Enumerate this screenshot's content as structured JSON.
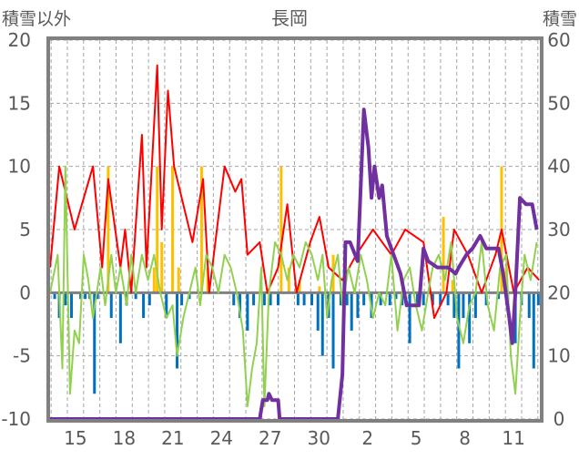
{
  "chart_data": {
    "type": "line",
    "title": "長岡",
    "ylabel_left": "積雪以外",
    "ylabel_right": "積雪",
    "ylim_left": [
      -10,
      20
    ],
    "ylim_right": [
      0,
      60
    ],
    "yticks_left": [
      "20",
      "15",
      "10",
      "5",
      "0",
      "-5",
      "-10"
    ],
    "yticks_left_values": [
      20,
      15,
      10,
      5,
      0,
      -5,
      -10
    ],
    "yticks_right": [
      "60",
      "50",
      "40",
      "30",
      "20",
      "10",
      "0"
    ],
    "yticks_right_values": [
      60,
      50,
      40,
      30,
      20,
      10,
      0
    ],
    "xlim": [
      0,
      32
    ],
    "xticks": [
      "15",
      "18",
      "21",
      "24",
      "27",
      "30",
      "2",
      "5",
      "8",
      "11"
    ],
    "xtick_values": [
      1.66,
      4.84,
      8.02,
      11.2,
      14.38,
      17.56,
      20.74,
      23.92,
      27.1,
      30.28
    ],
    "grid": true,
    "colors": {
      "red": "#ff0000",
      "green": "#92d050",
      "purple": "#7030a0",
      "blue": "#0070c0",
      "orange": "#ffc000",
      "frame": "#808080"
    },
    "series": [
      {
        "name": "red-line",
        "axis": "left",
        "color": "#ff0000",
        "points": [
          [
            0,
            2
          ],
          [
            0.6,
            10
          ],
          [
            1.6,
            5
          ],
          [
            2.8,
            10
          ],
          [
            3.4,
            2
          ],
          [
            3.8,
            9
          ],
          [
            4.6,
            2
          ],
          [
            4.9,
            5
          ],
          [
            5.3,
            0
          ],
          [
            6.0,
            12.5
          ],
          [
            6.3,
            2
          ],
          [
            7.0,
            18
          ],
          [
            7.3,
            5
          ],
          [
            7.7,
            16
          ],
          [
            8.1,
            10
          ],
          [
            8.7,
            7
          ],
          [
            9.3,
            4
          ],
          [
            10.0,
            9
          ],
          [
            10.4,
            0
          ],
          [
            11.4,
            10
          ],
          [
            12.1,
            8
          ],
          [
            12.5,
            9
          ],
          [
            12.9,
            3
          ],
          [
            13.7,
            4
          ],
          [
            14.2,
            0
          ],
          [
            14.9,
            2
          ],
          [
            15.5,
            7
          ],
          [
            16.1,
            0
          ],
          [
            17.0,
            4
          ],
          [
            17.6,
            6
          ],
          [
            18.2,
            2
          ],
          [
            19.1,
            1
          ],
          [
            20.0,
            3
          ],
          [
            21.1,
            5
          ],
          [
            22.3,
            3
          ],
          [
            23.2,
            5
          ],
          [
            24.4,
            4
          ],
          [
            25.1,
            -2
          ],
          [
            25.9,
            0
          ],
          [
            26.4,
            5
          ],
          [
            27.3,
            3
          ],
          [
            28.2,
            0
          ],
          [
            29.1,
            3
          ],
          [
            29.5,
            5
          ],
          [
            30.3,
            0
          ],
          [
            31.2,
            2
          ],
          [
            31.95,
            1
          ]
        ]
      },
      {
        "name": "green-line",
        "axis": "left",
        "color": "#92d050",
        "points": [
          [
            0,
            0
          ],
          [
            0.5,
            3
          ],
          [
            0.8,
            -6
          ],
          [
            1.0,
            10
          ],
          [
            1.3,
            -8
          ],
          [
            1.6,
            -3
          ],
          [
            1.9,
            -4
          ],
          [
            2.2,
            3
          ],
          [
            2.5,
            1
          ],
          [
            2.8,
            -2
          ],
          [
            3.3,
            2
          ],
          [
            3.6,
            -1
          ],
          [
            4.0,
            3
          ],
          [
            4.3,
            0
          ],
          [
            4.6,
            2
          ],
          [
            5.0,
            -1
          ],
          [
            5.3,
            3
          ],
          [
            5.6,
            0
          ],
          [
            6.0,
            3
          ],
          [
            6.4,
            1
          ],
          [
            6.8,
            3
          ],
          [
            7.2,
            0
          ],
          [
            7.6,
            -2
          ],
          [
            8.0,
            -1
          ],
          [
            8.3,
            -5
          ],
          [
            8.7,
            -2
          ],
          [
            9.1,
            0
          ],
          [
            9.5,
            2
          ],
          [
            9.8,
            -1
          ],
          [
            10.2,
            3
          ],
          [
            10.6,
            2
          ],
          [
            11.0,
            0
          ],
          [
            11.4,
            3
          ],
          [
            11.8,
            2
          ],
          [
            12.2,
            0
          ],
          [
            12.6,
            -3
          ],
          [
            12.9,
            -9
          ],
          [
            13.2,
            -6
          ],
          [
            13.5,
            -4
          ],
          [
            13.8,
            2
          ],
          [
            14.0,
            -9
          ],
          [
            14.3,
            0
          ],
          [
            14.7,
            4
          ],
          [
            15.1,
            3
          ],
          [
            15.5,
            1
          ],
          [
            15.9,
            3
          ],
          [
            16.3,
            2
          ],
          [
            16.7,
            4
          ],
          [
            17.1,
            3
          ],
          [
            17.5,
            1
          ],
          [
            17.8,
            3
          ],
          [
            18.1,
            -2
          ],
          [
            18.4,
            1
          ],
          [
            18.8,
            3
          ],
          [
            19.1,
            -1
          ],
          [
            19.5,
            2
          ],
          [
            19.9,
            0
          ],
          [
            20.3,
            3
          ],
          [
            20.7,
            1
          ],
          [
            21.1,
            -2
          ],
          [
            21.5,
            0
          ],
          [
            21.9,
            -1
          ],
          [
            22.3,
            3
          ],
          [
            22.7,
            -3
          ],
          [
            23.1,
            1
          ],
          [
            23.5,
            2
          ],
          [
            23.9,
            -1
          ],
          [
            24.3,
            -3
          ],
          [
            24.7,
            0
          ],
          [
            25.0,
            2
          ],
          [
            25.4,
            3
          ],
          [
            25.8,
            1
          ],
          [
            26.2,
            4
          ],
          [
            26.6,
            -2
          ],
          [
            27.0,
            -4
          ],
          [
            27.4,
            -1
          ],
          [
            27.8,
            0
          ],
          [
            28.2,
            4
          ],
          [
            28.6,
            -1
          ],
          [
            29.0,
            -3
          ],
          [
            29.4,
            2
          ],
          [
            29.8,
            3
          ],
          [
            30.1,
            -5
          ],
          [
            30.4,
            -8
          ],
          [
            30.7,
            -2
          ],
          [
            31.0,
            3
          ],
          [
            31.4,
            1
          ],
          [
            31.8,
            4
          ]
        ]
      },
      {
        "name": "snow-depth-line",
        "axis": "right",
        "color": "#7030a0",
        "points": [
          [
            0,
            0
          ],
          [
            13.7,
            0
          ],
          [
            13.9,
            3
          ],
          [
            14.2,
            3
          ],
          [
            14.3,
            4
          ],
          [
            14.5,
            3
          ],
          [
            14.9,
            3
          ],
          [
            15.0,
            0
          ],
          [
            18.8,
            0
          ],
          [
            19.1,
            7
          ],
          [
            19.3,
            28
          ],
          [
            19.6,
            28
          ],
          [
            20.1,
            25
          ],
          [
            20.5,
            49
          ],
          [
            20.8,
            43
          ],
          [
            21.0,
            35
          ],
          [
            21.2,
            40
          ],
          [
            21.5,
            35
          ],
          [
            21.7,
            37
          ],
          [
            22.0,
            29
          ],
          [
            22.3,
            27
          ],
          [
            22.9,
            23
          ],
          [
            23.3,
            18
          ],
          [
            24.1,
            18
          ],
          [
            24.4,
            27
          ],
          [
            24.7,
            25
          ],
          [
            25.3,
            24
          ],
          [
            26.0,
            24
          ],
          [
            26.5,
            23
          ],
          [
            26.7,
            24
          ],
          [
            27.2,
            26
          ],
          [
            27.6,
            27
          ],
          [
            28.1,
            29
          ],
          [
            28.5,
            27
          ],
          [
            29.3,
            27
          ],
          [
            29.6,
            23
          ],
          [
            30.0,
            16
          ],
          [
            30.2,
            12
          ],
          [
            30.4,
            20
          ],
          [
            30.7,
            35
          ],
          [
            31.1,
            34
          ],
          [
            31.5,
            34
          ],
          [
            31.8,
            30
          ]
        ]
      }
    ],
    "bars": [
      {
        "name": "blue-bars",
        "axis": "left",
        "color": "#0070c0",
        "points": [
          [
            0.3,
            -0.5
          ],
          [
            0.6,
            -2
          ],
          [
            1.0,
            -1
          ],
          [
            1.4,
            -2
          ],
          [
            2.0,
            -0.5
          ],
          [
            2.3,
            -0.5
          ],
          [
            2.6,
            -0.5
          ],
          [
            2.9,
            -8
          ],
          [
            3.1,
            -0.5
          ],
          [
            4.0,
            -2
          ],
          [
            4.6,
            -4
          ],
          [
            5.0,
            -1
          ],
          [
            5.6,
            -0.5
          ],
          [
            6.1,
            -2
          ],
          [
            6.5,
            -1
          ],
          [
            7.6,
            -2
          ],
          [
            8.3,
            -6
          ],
          [
            8.6,
            -1
          ],
          [
            9.1,
            -0.5
          ],
          [
            12.0,
            -1
          ],
          [
            12.4,
            -2
          ],
          [
            12.9,
            -3
          ],
          [
            13.3,
            -1
          ],
          [
            14.0,
            -1
          ],
          [
            14.4,
            -1
          ],
          [
            14.9,
            -1
          ],
          [
            16.2,
            -1
          ],
          [
            16.6,
            -1
          ],
          [
            17.1,
            -1
          ],
          [
            17.5,
            -3
          ],
          [
            17.8,
            -5
          ],
          [
            18.2,
            -2
          ],
          [
            18.5,
            -6
          ],
          [
            19.0,
            -1
          ],
          [
            19.4,
            -1
          ],
          [
            19.7,
            -3
          ],
          [
            20.1,
            -2
          ],
          [
            20.5,
            -1
          ],
          [
            21.0,
            -2
          ],
          [
            21.6,
            -1
          ],
          [
            22.2,
            -1
          ],
          [
            22.6,
            -0.5
          ],
          [
            23.0,
            -1
          ],
          [
            23.5,
            -4
          ],
          [
            24.0,
            -1
          ],
          [
            24.4,
            -1
          ],
          [
            25.0,
            -1
          ],
          [
            25.5,
            -1
          ],
          [
            26.0,
            -1
          ],
          [
            26.4,
            -2
          ],
          [
            26.7,
            -6
          ],
          [
            27.0,
            -2
          ],
          [
            27.4,
            -4
          ],
          [
            27.8,
            -2
          ],
          [
            28.5,
            -1
          ],
          [
            29.3,
            -0.5
          ],
          [
            29.9,
            -1
          ],
          [
            30.4,
            -4
          ],
          [
            30.8,
            -1
          ],
          [
            31.3,
            -2
          ],
          [
            31.6,
            -6
          ],
          [
            31.9,
            -1
          ]
        ]
      },
      {
        "name": "orange-bars",
        "axis": "left",
        "color": "#ffc000",
        "points": [
          [
            3.8,
            10
          ],
          [
            5.6,
            0.5
          ],
          [
            6.8,
            2
          ],
          [
            7.0,
            10
          ],
          [
            7.3,
            4
          ],
          [
            8.0,
            10
          ],
          [
            8.4,
            2
          ],
          [
            9.9,
            10
          ],
          [
            10.3,
            2
          ],
          [
            15.1,
            10
          ],
          [
            15.6,
            2
          ],
          [
            16.3,
            1
          ],
          [
            17.6,
            0.5
          ],
          [
            18.5,
            3
          ],
          [
            25.7,
            6
          ],
          [
            26.3,
            1
          ],
          [
            29.5,
            10
          ],
          [
            29.8,
            2
          ]
        ]
      }
    ]
  }
}
